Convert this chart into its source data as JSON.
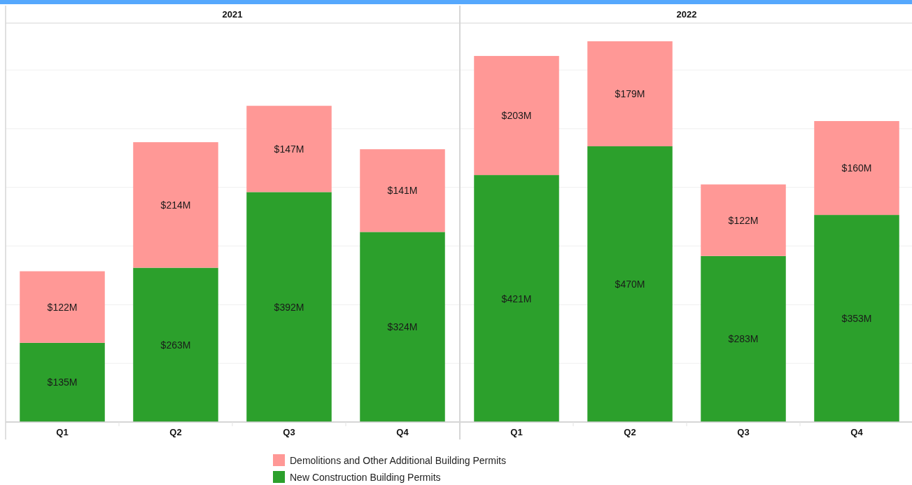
{
  "chart_data": [
    {
      "type": "bar",
      "title": "2021",
      "categories": [
        "Q1",
        "Q2",
        "Q3",
        "Q4"
      ],
      "stacked": true,
      "series": [
        {
          "name": "New Construction Building Permits",
          "color": "#2ca02c",
          "values": [
            135,
            263,
            392,
            324
          ],
          "value_labels": [
            "$135M",
            "$263M",
            "$392M",
            "$324M"
          ]
        },
        {
          "name": "Demolitions and Other Additional Building Permits",
          "color": "#ff9896",
          "values": [
            122,
            214,
            147,
            141
          ],
          "value_labels": [
            "$122M",
            "$214M",
            "$147M",
            "$141M"
          ]
        }
      ],
      "ylim": [
        0,
        680
      ],
      "yticks": [
        {
          "value": 100,
          "label": null
        },
        {
          "value": 200,
          "label": null
        },
        {
          "value": 300,
          "label": null
        },
        {
          "value": 400,
          "label": null
        },
        {
          "value": 500,
          "label": null
        },
        {
          "value": 600,
          "label": null
        }
      ],
      "grid": "y",
      "tick_labels": "x",
      "legend": "bottom"
    },
    {
      "type": "bar",
      "title": "2022",
      "categories": [
        "Q1",
        "Q2",
        "Q3",
        "Q4"
      ],
      "stacked": true,
      "series": [
        {
          "color": "#2ca02c",
          "values": [
            421,
            470,
            283,
            353
          ],
          "value_labels": [
            "$421M",
            "$470M",
            "$283M",
            "$353M"
          ]
        },
        {
          "color": "#ff9896",
          "values": [
            203,
            179,
            122,
            160
          ],
          "value_labels": [
            "$203M",
            "$179M",
            "$122M",
            "$160M"
          ]
        }
      ],
      "ylim": [
        0,
        680
      ],
      "yticks": [
        {
          "value": 100,
          "label": null
        },
        {
          "value": 200,
          "label": null
        },
        {
          "value": 300,
          "label": null
        },
        {
          "value": 400,
          "label": null
        },
        {
          "value": 500,
          "label": null
        },
        {
          "value": 600,
          "label": null
        }
      ],
      "grid": "y",
      "tick_labels": "x"
    }
  ]
}
